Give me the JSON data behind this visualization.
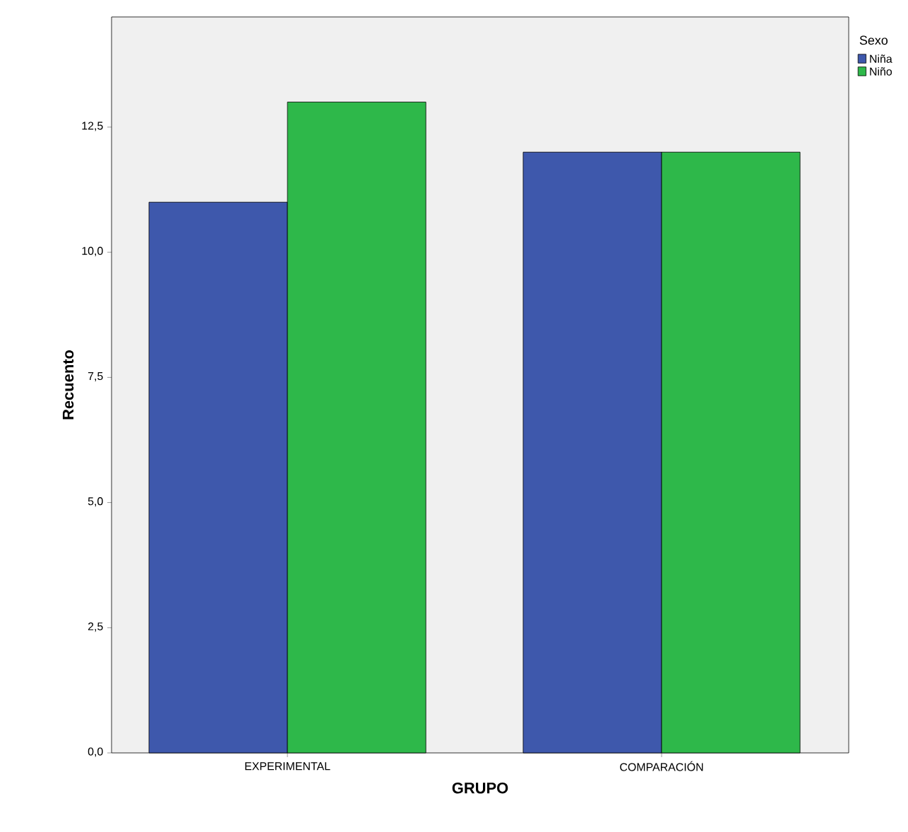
{
  "chart_data": {
    "type": "bar",
    "xlabel": "GRUPO",
    "ylabel": "Recuento",
    "legend_title": "Sexo",
    "categories": [
      "EXPERIMENTAL",
      "COMPARACIÓN"
    ],
    "series": [
      {
        "name": "Niña",
        "color": "#3e58ac",
        "values": [
          11,
          12
        ]
      },
      {
        "name": "Niño",
        "color": "#2eb84a",
        "values": [
          13,
          12
        ]
      }
    ],
    "ylim": [
      0,
      14.7
    ],
    "yticks": [
      {
        "value": 0,
        "label": "0,0"
      },
      {
        "value": 2.5,
        "label": "2,5"
      },
      {
        "value": 5,
        "label": "5,0"
      },
      {
        "value": 7.5,
        "label": "7,5"
      },
      {
        "value": 10,
        "label": "10,0"
      },
      {
        "value": 12.5,
        "label": "12,5"
      }
    ],
    "grid": false,
    "legend": "top right"
  }
}
